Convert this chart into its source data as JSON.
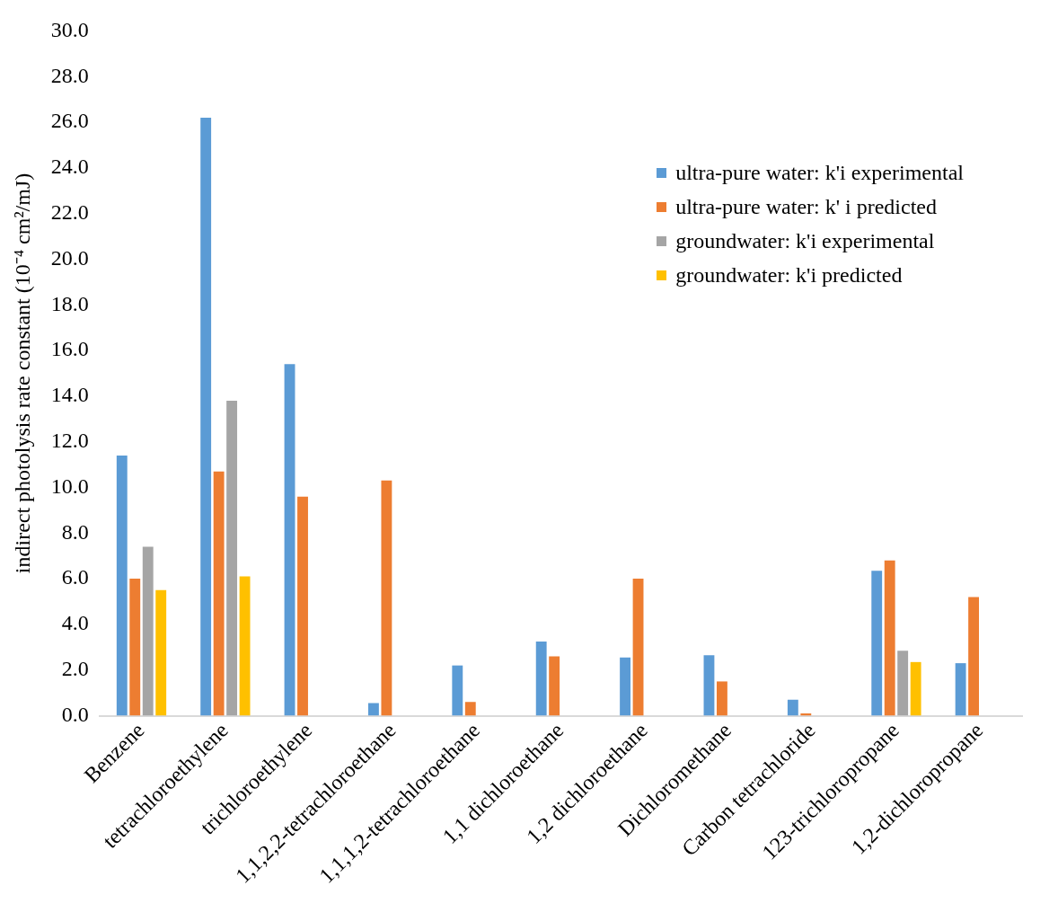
{
  "chart_data": {
    "type": "bar",
    "ylabel": "indirect photolysis rate constant (10⁻⁴ cm²/mJ)",
    "categories": [
      "Benzene",
      "tetrachloroethylene",
      "trichloroethylene",
      "1,1,2,2-tetrachloroethane",
      "1,1,1,2-tetrachloroethane",
      "1,1 dichloroethane",
      "1,2 dichloroethane",
      "Dichloromethane",
      "Carbon tetrachloride",
      "123-trichloropropane",
      "1,2-dichloropropane"
    ],
    "series": [
      {
        "name": "ultra-pure water: k'i experimental",
        "color": "#5b9bd5",
        "values": [
          11.4,
          26.2,
          15.4,
          0.55,
          2.2,
          3.25,
          2.55,
          2.65,
          0.7,
          6.35,
          2.3
        ]
      },
      {
        "name": "ultra-pure water: k' i predicted",
        "color": "#ed7d31",
        "values": [
          6.0,
          10.7,
          9.6,
          10.3,
          0.6,
          2.6,
          6.0,
          1.5,
          0.1,
          6.8,
          5.2
        ]
      },
      {
        "name": "groundwater: k'i experimental",
        "color": "#a5a5a5",
        "values": [
          7.4,
          13.8,
          null,
          null,
          null,
          null,
          null,
          null,
          null,
          2.85,
          null
        ]
      },
      {
        "name": "groundwater: k'i predicted",
        "color": "#ffc000",
        "values": [
          5.5,
          6.1,
          null,
          null,
          null,
          null,
          null,
          null,
          null,
          2.35,
          null
        ]
      }
    ],
    "ylim": [
      0,
      30
    ],
    "yticks": [
      {
        "value": 0,
        "label": "0.0"
      },
      {
        "value": 2,
        "label": "2.0"
      },
      {
        "value": 4,
        "label": "4.0"
      },
      {
        "value": 6,
        "label": "6.0"
      },
      {
        "value": 8,
        "label": "8.0"
      },
      {
        "value": 10,
        "label": "10.0"
      },
      {
        "value": 12,
        "label": "12.0"
      },
      {
        "value": 14,
        "label": "14.0"
      },
      {
        "value": 16,
        "label": "16.0"
      },
      {
        "value": 18,
        "label": "18.0"
      },
      {
        "value": 20,
        "label": "20.0"
      },
      {
        "value": 22,
        "label": "22.0"
      },
      {
        "value": 24,
        "label": "24.0"
      },
      {
        "value": 26,
        "label": "26.0"
      },
      {
        "value": 28,
        "label": "28.0"
      },
      {
        "value": 30,
        "label": "30.0"
      }
    ],
    "legend": "top right",
    "grid": false
  }
}
